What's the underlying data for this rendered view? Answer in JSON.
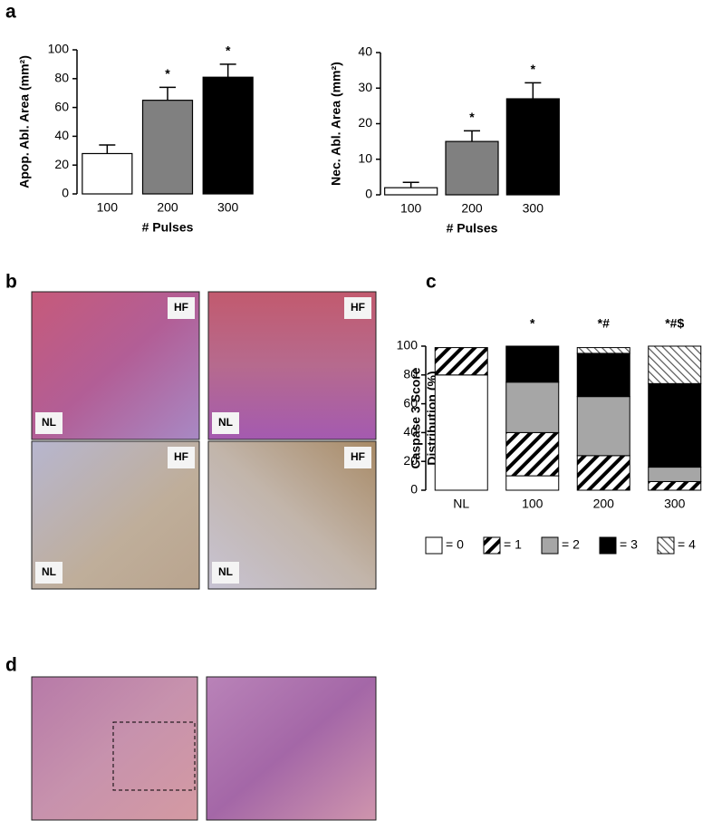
{
  "panel_labels": [
    "a",
    "b",
    "c",
    "d"
  ],
  "micrographs": [
    {
      "labels": [
        "HF",
        "NL"
      ]
    },
    {
      "labels": [
        "HF",
        "NL"
      ]
    },
    {
      "labels": [
        "HF",
        "NL"
      ]
    },
    {
      "labels": [
        "HF",
        "NL"
      ]
    }
  ],
  "chart_data": [
    {
      "type": "bar",
      "ylabel": "Apop. Abl. Area (mm²)",
      "xlabel": "# Pulses",
      "categories": [
        "100",
        "200",
        "300"
      ],
      "values": [
        28,
        65,
        81
      ],
      "errors": [
        6,
        9,
        9
      ],
      "colors": [
        "#ffffff",
        "#808080",
        "#000000"
      ],
      "significance": [
        null,
        "*",
        "*"
      ],
      "ylim": [
        0,
        100
      ],
      "yticks": [
        0,
        20,
        40,
        60,
        80,
        100
      ]
    },
    {
      "type": "bar",
      "ylabel": "Nec. Abl. Area (mm²)",
      "xlabel": "# Pulses",
      "categories": [
        "100",
        "200",
        "300"
      ],
      "values": [
        2,
        15,
        27
      ],
      "errors": [
        1.5,
        3,
        4.5
      ],
      "colors": [
        "#ffffff",
        "#808080",
        "#000000"
      ],
      "significance": [
        null,
        "*",
        "*"
      ],
      "ylim": [
        0,
        40
      ],
      "yticks": [
        0,
        10,
        20,
        30,
        40
      ]
    },
    {
      "type": "stacked-bar",
      "ylabel": [
        "Caspase 3 Score",
        "Distribution (%)"
      ],
      "categories": [
        "NL",
        "100",
        "200",
        "300"
      ],
      "significance": [
        null,
        "*",
        "*#",
        "*#$"
      ],
      "series": [
        {
          "name": "= 0",
          "color": "#ffffff",
          "values": [
            80,
            10,
            0,
            0
          ]
        },
        {
          "name": "= 1",
          "color": "hatch-dense",
          "values": [
            19,
            30,
            24,
            6
          ]
        },
        {
          "name": "= 2",
          "color": "#a6a6a6",
          "values": [
            0,
            35,
            41,
            10
          ]
        },
        {
          "name": "= 3",
          "color": "#000000",
          "values": [
            0,
            25,
            30,
            58
          ]
        },
        {
          "name": "= 4",
          "color": "hatch-light",
          "values": [
            0,
            0,
            4,
            26
          ]
        }
      ],
      "ylim": [
        0,
        100
      ],
      "yticks": [
        0,
        20,
        40,
        60,
        80,
        100
      ]
    }
  ]
}
